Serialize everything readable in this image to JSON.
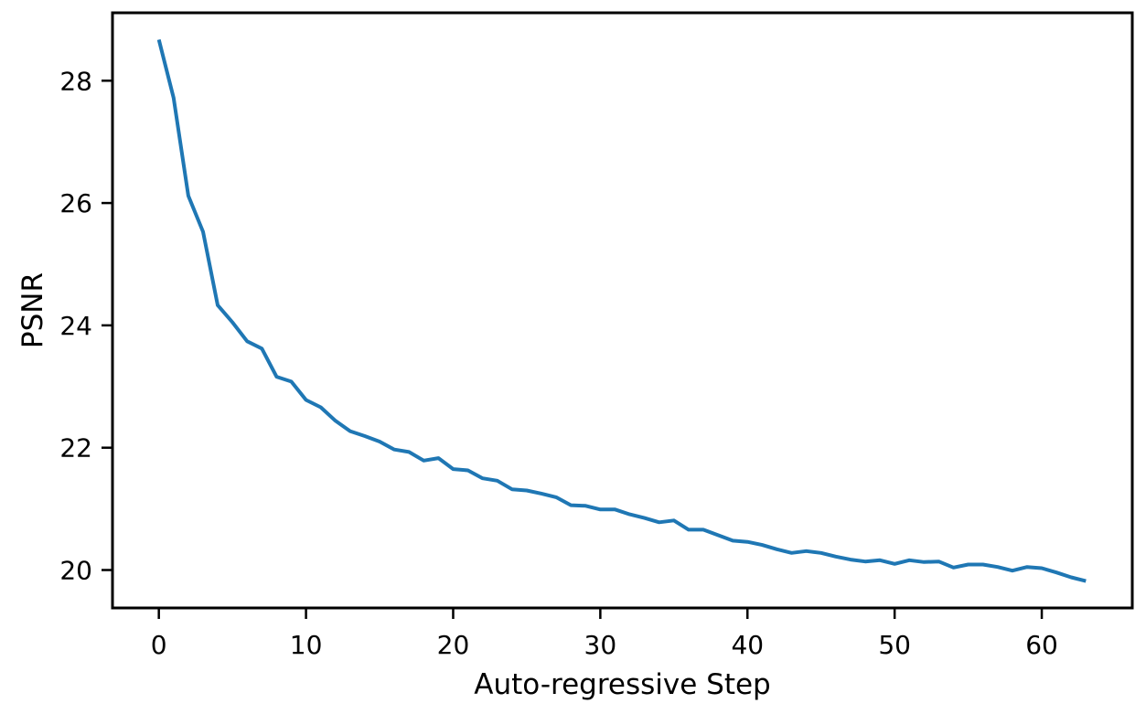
{
  "chart_data": {
    "type": "line",
    "title": "",
    "xlabel": "Auto-regressive Step",
    "ylabel": "PSNR",
    "xlim": [
      -3.15,
      66.15
    ],
    "ylim": [
      19.38,
      29.11
    ],
    "xticks": [
      0,
      10,
      20,
      30,
      40,
      50,
      60
    ],
    "yticks": [
      20,
      22,
      24,
      26,
      28
    ],
    "grid": false,
    "legend": "none",
    "series": [
      {
        "color": "#1f77b4",
        "x": [
          0,
          1,
          2,
          3,
          4,
          5,
          6,
          7,
          8,
          9,
          10,
          11,
          12,
          13,
          14,
          15,
          16,
          17,
          18,
          19,
          20,
          21,
          22,
          23,
          24,
          25,
          26,
          27,
          28,
          29,
          30,
          31,
          32,
          33,
          34,
          35,
          36,
          37,
          38,
          39,
          40,
          41,
          42,
          43,
          44,
          45,
          46,
          47,
          48,
          49,
          50,
          51,
          52,
          53,
          54,
          55,
          56,
          57,
          58,
          59,
          60,
          61,
          62,
          63
        ],
        "y": [
          28.67,
          27.72,
          26.12,
          25.53,
          24.33,
          24.05,
          23.74,
          23.62,
          23.16,
          23.08,
          22.78,
          22.66,
          22.44,
          22.27,
          22.19,
          22.1,
          21.97,
          21.93,
          21.79,
          21.83,
          21.65,
          21.63,
          21.5,
          21.46,
          21.32,
          21.3,
          21.25,
          21.19,
          21.06,
          21.05,
          20.99,
          20.99,
          20.91,
          20.85,
          20.78,
          20.81,
          20.66,
          20.66,
          20.57,
          20.48,
          20.46,
          20.41,
          20.34,
          20.28,
          20.31,
          20.28,
          20.22,
          20.17,
          20.14,
          20.16,
          20.1,
          20.16,
          20.13,
          20.14,
          20.04,
          20.09,
          20.09,
          20.05,
          19.99,
          20.05,
          20.03,
          19.96,
          19.88,
          19.82
        ]
      }
    ]
  }
}
